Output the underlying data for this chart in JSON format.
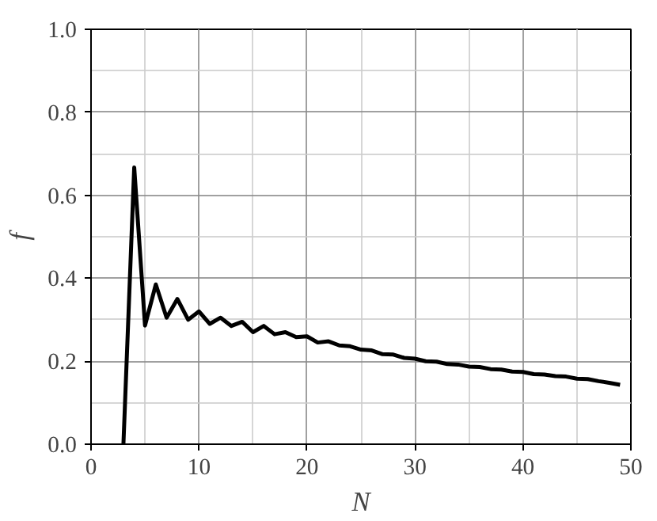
{
  "chart_data": {
    "type": "line",
    "xlabel": "N",
    "ylabel": "f",
    "x": [
      3,
      4,
      5,
      6,
      7,
      8,
      9,
      10,
      11,
      12,
      13,
      14,
      15,
      16,
      17,
      18,
      19,
      20,
      21,
      22,
      23,
      24,
      25,
      26,
      27,
      28,
      29,
      30,
      31,
      32,
      33,
      34,
      35,
      36,
      37,
      38,
      39,
      40,
      41,
      42,
      43,
      44,
      45,
      46,
      47,
      48,
      49
    ],
    "series": [
      {
        "color": "#000000",
        "values": [
          0,
          0.667,
          0.286,
          0.385,
          0.305,
          0.35,
          0.3,
          0.32,
          0.29,
          0.305,
          0.285,
          0.295,
          0.27,
          0.285,
          0.265,
          0.27,
          0.258,
          0.26,
          0.245,
          0.248,
          0.238,
          0.236,
          0.228,
          0.226,
          0.217,
          0.216,
          0.208,
          0.206,
          0.2,
          0.199,
          0.193,
          0.192,
          0.187,
          0.186,
          0.181,
          0.18,
          0.175,
          0.174,
          0.169,
          0.168,
          0.164,
          0.163,
          0.158,
          0.157,
          0.152,
          0.148,
          0.143
        ]
      }
    ],
    "xlim": [
      0,
      50
    ],
    "ylim": [
      0,
      1
    ],
    "xticks": [
      0,
      10,
      20,
      30,
      40,
      50
    ],
    "yticks": [
      {
        "value": 0,
        "label": "0.0"
      },
      0.2,
      0.4,
      0.6,
      0.8,
      {
        "value": 1,
        "label": "1.0"
      }
    ],
    "grid": true,
    "line_style": "solid",
    "marker": "none"
  }
}
